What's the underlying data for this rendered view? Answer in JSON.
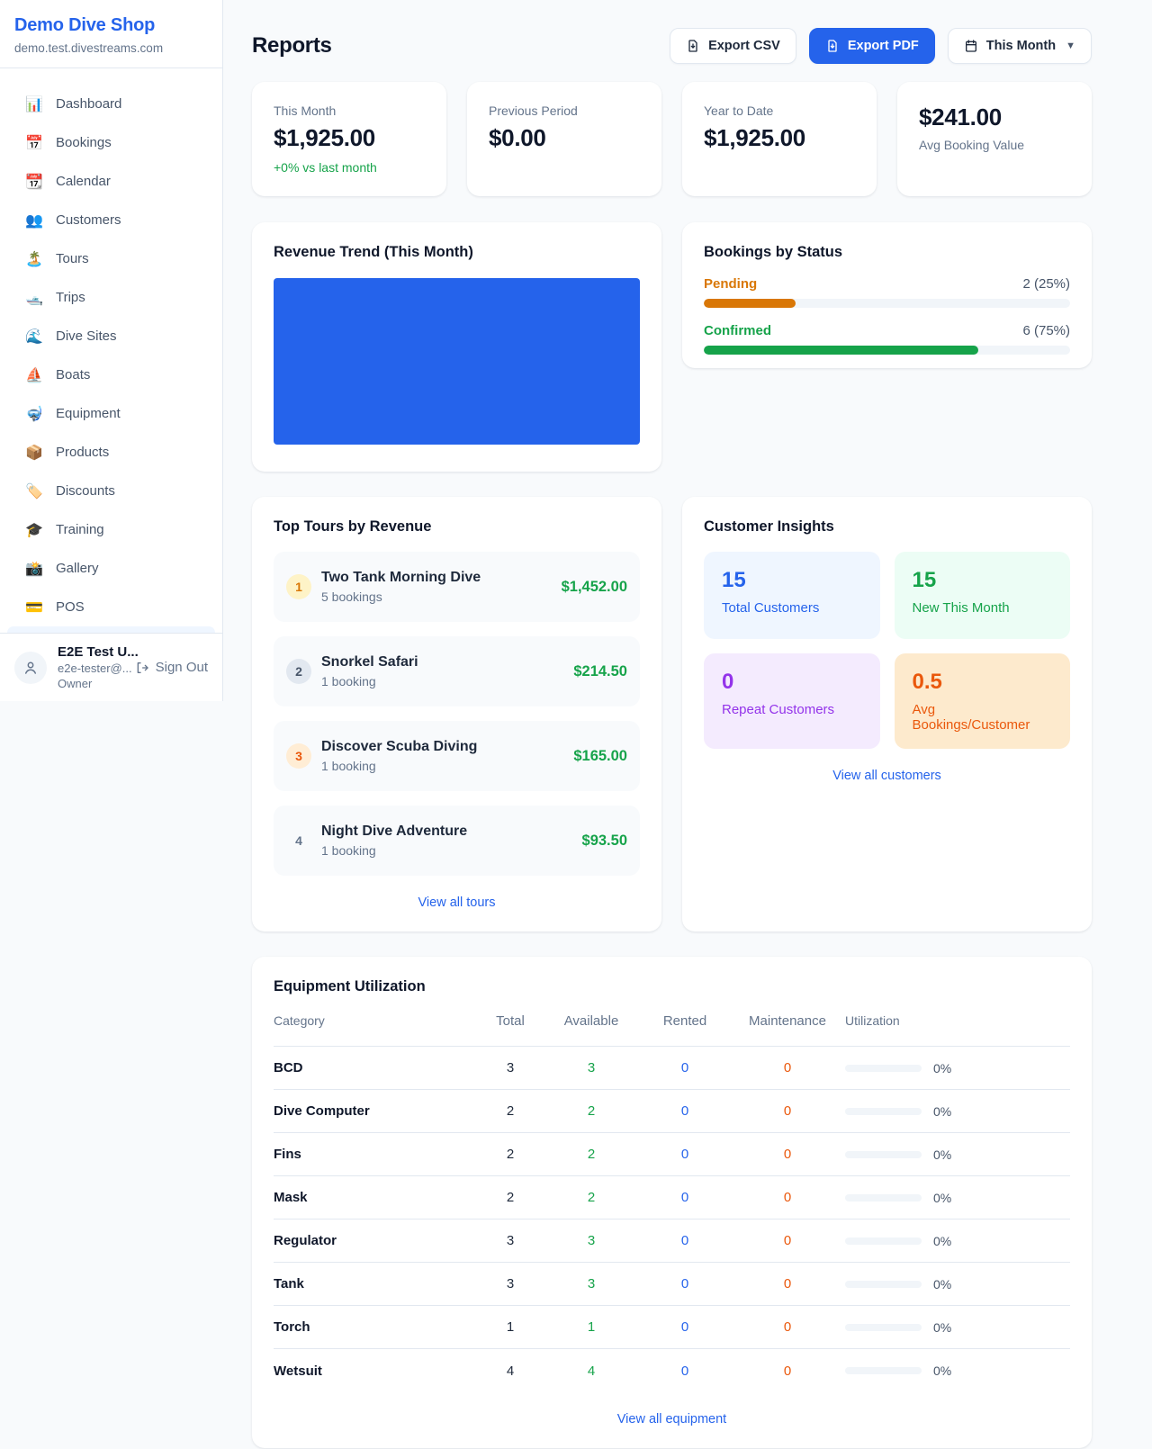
{
  "colors": {
    "accent_blue": "#2563eb",
    "green": "#16a34a",
    "orange_pending": "#d97706",
    "orange_deep": "#ea580c",
    "purple": "#9333ea"
  },
  "sidebar": {
    "brand": "Demo Dive Shop",
    "domain": "demo.test.divestreams.com",
    "items": [
      {
        "icon": "📊",
        "label": "Dashboard"
      },
      {
        "icon": "📅",
        "label": "Bookings"
      },
      {
        "icon": "📆",
        "label": "Calendar"
      },
      {
        "icon": "👥",
        "label": "Customers"
      },
      {
        "icon": "🏝️",
        "label": "Tours"
      },
      {
        "icon": "🛥️",
        "label": "Trips"
      },
      {
        "icon": "🌊",
        "label": "Dive Sites"
      },
      {
        "icon": "⛵",
        "label": "Boats"
      },
      {
        "icon": "🤿",
        "label": "Equipment"
      },
      {
        "icon": "📦",
        "label": "Products"
      },
      {
        "icon": "🏷️",
        "label": "Discounts"
      },
      {
        "icon": "🎓",
        "label": "Training"
      },
      {
        "icon": "📸",
        "label": "Gallery"
      },
      {
        "icon": "💳",
        "label": "POS"
      }
    ],
    "user": {
      "name": "E2E Test U...",
      "email": "e2e-tester@...",
      "role": "Owner",
      "sign_out": "Sign Out"
    }
  },
  "header": {
    "title": "Reports",
    "export_csv": "Export CSV",
    "export_pdf": "Export PDF",
    "period": "This Month"
  },
  "stats": [
    {
      "label": "This Month",
      "value": "$1,925.00",
      "delta": "+0% vs last month"
    },
    {
      "label": "Previous Period",
      "value": "$0.00"
    },
    {
      "label": "Year to Date",
      "value": "$1,925.00"
    },
    {
      "label": "Avg Booking Value",
      "value": "$241.00"
    }
  ],
  "revenue_trend": {
    "title": "Revenue Trend (This Month)",
    "chart": {
      "fill_color": "#2563eb",
      "fill_pct": 100
    }
  },
  "bookings_by_status": {
    "title": "Bookings by Status",
    "rows": [
      {
        "label": "Pending",
        "count": "2 (25%)",
        "pct": 25,
        "color": "#d97706"
      },
      {
        "label": "Confirmed",
        "count": "6 (75%)",
        "pct": 75,
        "color": "#16a34a"
      }
    ]
  },
  "top_tours": {
    "title": "Top Tours by Revenue",
    "rows": [
      {
        "rank": "1",
        "name": "Two Tank Morning Dive",
        "bookings": "5 bookings",
        "amount": "$1,452.00"
      },
      {
        "rank": "2",
        "name": "Snorkel Safari",
        "bookings": "1 booking",
        "amount": "$214.50"
      },
      {
        "rank": "3",
        "name": "Discover Scuba Diving",
        "bookings": "1 booking",
        "amount": "$165.00"
      },
      {
        "rank": "4",
        "name": "Night Dive Adventure",
        "bookings": "1 booking",
        "amount": "$93.50"
      }
    ],
    "link": "View all tours"
  },
  "customer_insights": {
    "title": "Customer Insights",
    "tiles": [
      {
        "value": "15",
        "label": "Total Customers",
        "theme": "blue"
      },
      {
        "value": "15",
        "label": "New This Month",
        "theme": "green"
      },
      {
        "value": "0",
        "label": "Repeat Customers",
        "theme": "purple"
      },
      {
        "value": "0.5",
        "label": "Avg Bookings/Customer",
        "theme": "orange"
      }
    ],
    "link": "View all customers"
  },
  "equipment": {
    "title": "Equipment Utilization",
    "columns": [
      "Category",
      "Total",
      "Available",
      "Rented",
      "Maintenance",
      "Utilization"
    ],
    "rows": [
      {
        "category": "BCD",
        "total": "3",
        "available": "3",
        "rented": "0",
        "maintenance": "0",
        "utilization": "0%",
        "pct": 0
      },
      {
        "category": "Dive Computer",
        "total": "2",
        "available": "2",
        "rented": "0",
        "maintenance": "0",
        "utilization": "0%",
        "pct": 0
      },
      {
        "category": "Fins",
        "total": "2",
        "available": "2",
        "rented": "0",
        "maintenance": "0",
        "utilization": "0%",
        "pct": 0
      },
      {
        "category": "Mask",
        "total": "2",
        "available": "2",
        "rented": "0",
        "maintenance": "0",
        "utilization": "0%",
        "pct": 0
      },
      {
        "category": "Regulator",
        "total": "3",
        "available": "3",
        "rented": "0",
        "maintenance": "0",
        "utilization": "0%",
        "pct": 0
      },
      {
        "category": "Tank",
        "total": "3",
        "available": "3",
        "rented": "0",
        "maintenance": "0",
        "utilization": "0%",
        "pct": 0
      },
      {
        "category": "Torch",
        "total": "1",
        "available": "1",
        "rented": "0",
        "maintenance": "0",
        "utilization": "0%",
        "pct": 0
      },
      {
        "category": "Wetsuit",
        "total": "4",
        "available": "4",
        "rented": "0",
        "maintenance": "0",
        "utilization": "0%",
        "pct": 0
      }
    ],
    "link": "View all equipment"
  }
}
